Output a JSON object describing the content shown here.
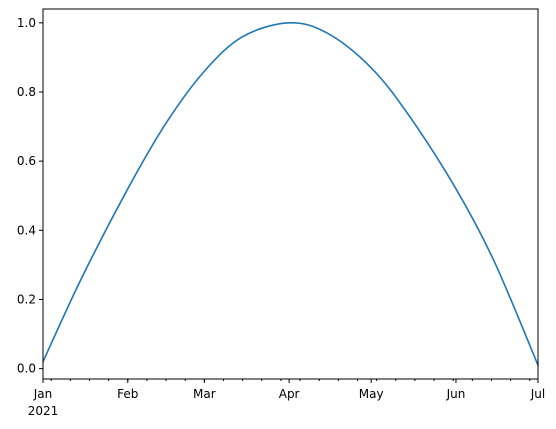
{
  "colors": {
    "series": "#1f77b4",
    "axis": "#000000",
    "background": "#ffffff"
  },
  "chart_data": {
    "type": "line",
    "title": "",
    "xlabel": "",
    "ylabel": "",
    "grid": false,
    "legend": "none",
    "xlim": [
      "2021-01-01",
      "2021-07-01"
    ],
    "ylim": [
      -0.03,
      1.04
    ],
    "x_tick_labels": [
      {
        "date": "2021-01-01",
        "label": "Jan",
        "sublabel": "2021"
      },
      {
        "date": "2021-02-01",
        "label": "Feb",
        "sublabel": ""
      },
      {
        "date": "2021-03-01",
        "label": "Mar",
        "sublabel": ""
      },
      {
        "date": "2021-04-01",
        "label": "Apr",
        "sublabel": ""
      },
      {
        "date": "2021-05-01",
        "label": "May",
        "sublabel": ""
      },
      {
        "date": "2021-06-01",
        "label": "Jun",
        "sublabel": ""
      },
      {
        "date": "2021-07-01",
        "label": "Jul",
        "sublabel": ""
      }
    ],
    "y_ticks": [
      0.0,
      0.2,
      0.4,
      0.6,
      0.8,
      1.0
    ],
    "y_tick_labels": [
      "0.0",
      "0.2",
      "0.4",
      "0.6",
      "0.8",
      "1.0"
    ],
    "series": [
      {
        "x": [
          "2021-01-01",
          "2021-01-15",
          "2021-02-01",
          "2021-02-15",
          "2021-03-01",
          "2021-03-15",
          "2021-04-01",
          "2021-04-15",
          "2021-05-01",
          "2021-05-15",
          "2021-06-01",
          "2021-06-15",
          "2021-07-01"
        ],
        "y": [
          0.02,
          0.26,
          0.52,
          0.71,
          0.86,
          0.96,
          1.0,
          0.97,
          0.87,
          0.73,
          0.52,
          0.31,
          0.01
        ]
      }
    ]
  }
}
